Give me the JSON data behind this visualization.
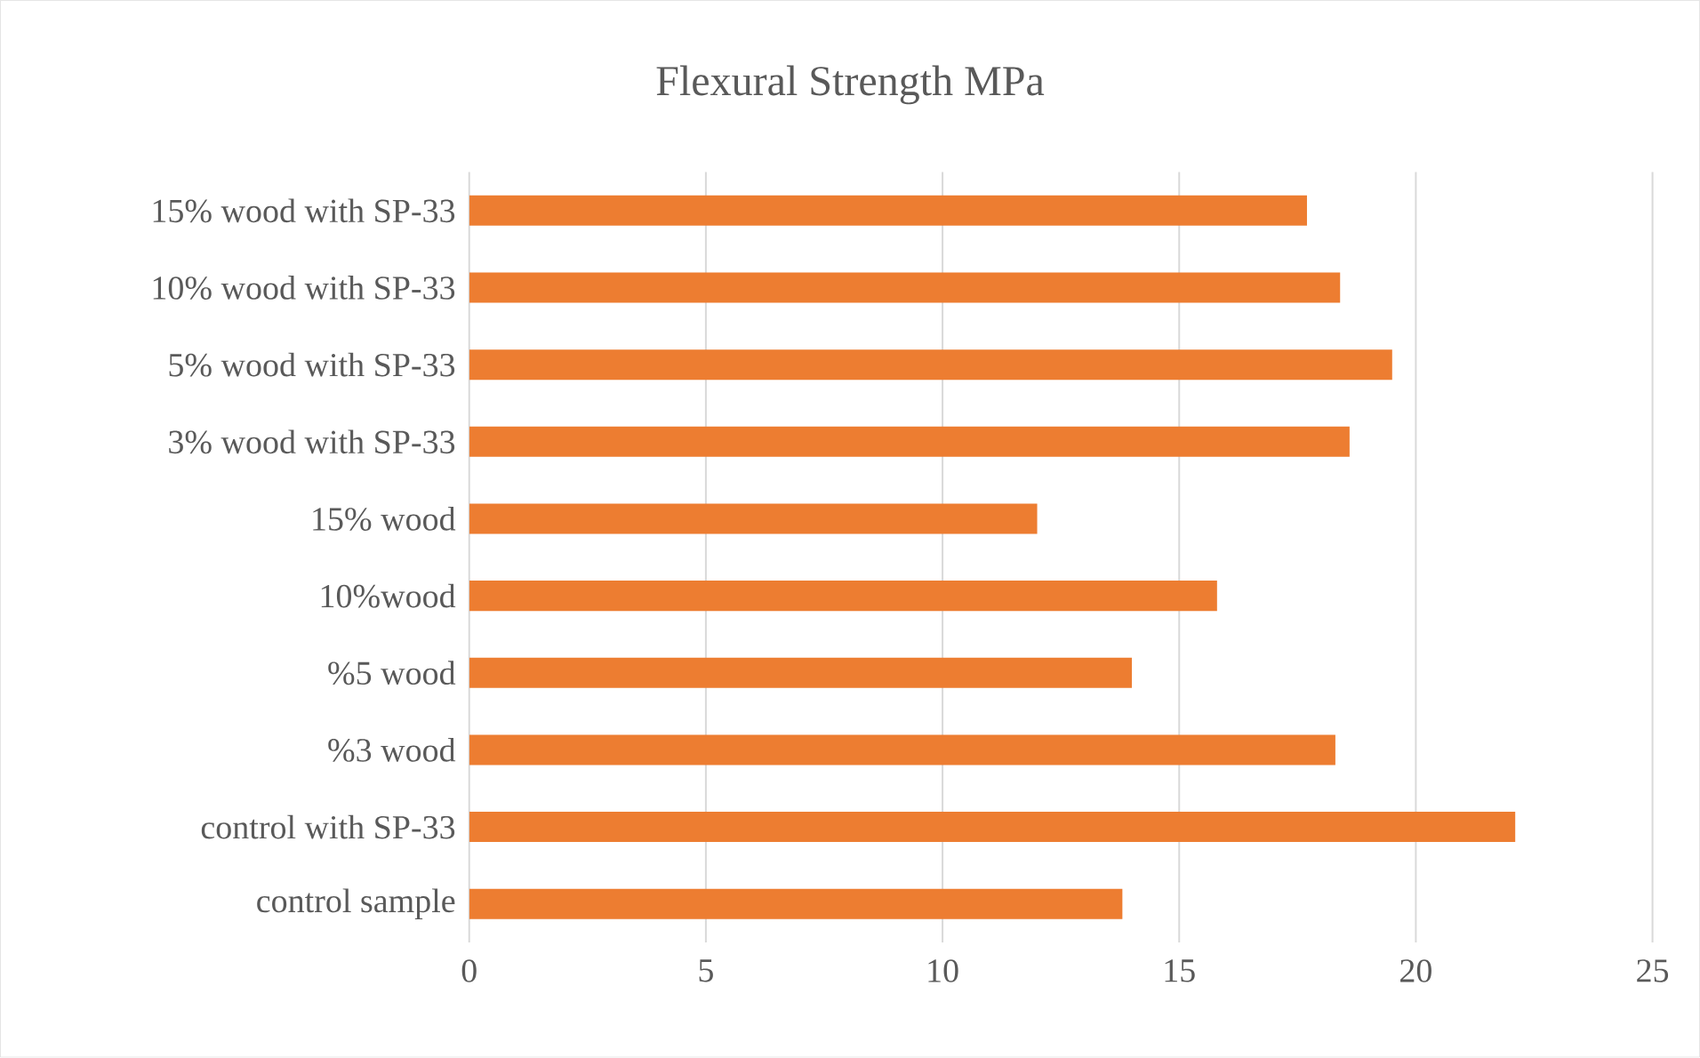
{
  "chart_data": {
    "type": "bar",
    "orientation": "horizontal",
    "title": "Flexural Strength MPa",
    "categories": [
      "15% wood with SP-33",
      "10% wood with SP-33",
      "5% wood with SP-33",
      "3% wood with SP-33",
      "15% wood",
      "10%wood",
      "%5 wood",
      "%3 wood",
      "control with SP-33",
      "control sample"
    ],
    "values": [
      17.7,
      18.4,
      19.5,
      18.6,
      12.0,
      15.8,
      14.0,
      18.3,
      22.1,
      13.8
    ],
    "color": "#ed7d31",
    "xlim": [
      0,
      25
    ],
    "xticks": [
      0,
      5,
      10,
      15,
      20,
      25
    ],
    "grid": "x"
  }
}
